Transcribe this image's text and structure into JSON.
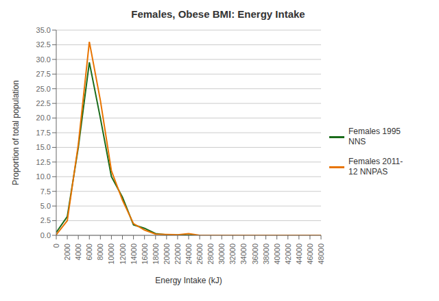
{
  "chart_data": {
    "type": "line",
    "title": "Females, Obese BMI: Energy Intake",
    "x_label": "Energy Intake (kJ)",
    "y_label": "Proportion of total population",
    "x": [
      0,
      2000,
      4000,
      6000,
      8000,
      10000,
      12000,
      14000,
      16000,
      18000,
      20000,
      22000,
      24000,
      26000,
      28000,
      30000,
      32000,
      34000,
      36000,
      38000,
      40000,
      42000,
      44000,
      46000,
      48000
    ],
    "series": [
      {
        "name": "Females 1995\nNNS",
        "color": "#1a6b1a",
        "values": [
          0.5,
          3.2,
          15.0,
          29.5,
          20.0,
          10.0,
          6.5,
          1.8,
          1.2,
          0.3,
          0.1,
          0.05,
          0.02,
          0.0,
          0.0,
          0.0,
          0.0,
          0.0,
          0.0,
          0.0,
          0.0,
          0.0,
          0.0,
          0.0,
          0.0
        ]
      },
      {
        "name": "Females 2011-\n12 NNPAS",
        "color": "#e87400",
        "values": [
          0.1,
          2.5,
          15.5,
          33.0,
          23.0,
          11.0,
          6.0,
          2.0,
          0.9,
          0.2,
          0.15,
          0.1,
          0.3,
          0.0,
          0.0,
          0.0,
          0.0,
          0.0,
          0.0,
          0.0,
          0.0,
          0.0,
          0.0,
          0.0,
          0.0
        ]
      }
    ],
    "xlim": [
      0,
      48000
    ],
    "xticks": [
      0,
      2000,
      4000,
      6000,
      8000,
      10000,
      12000,
      14000,
      16000,
      18000,
      20000,
      22000,
      24000,
      26000,
      28000,
      30000,
      32000,
      34000,
      36000,
      38000,
      40000,
      42000,
      44000,
      46000,
      48000
    ],
    "ylim": [
      0,
      35.0
    ],
    "yticks": [
      {
        "value": 0,
        "label": "0.0"
      },
      2.5,
      {
        "value": 5,
        "label": "5.0"
      },
      7.5,
      {
        "value": 10,
        "label": "10.0"
      },
      12.5,
      {
        "value": 15,
        "label": "15.0"
      },
      17.5,
      {
        "value": 20,
        "label": "20.0"
      },
      22.5,
      {
        "value": 25,
        "label": "25.0"
      },
      27.5,
      {
        "value": 30,
        "label": "30.0"
      },
      32.5,
      {
        "value": 35,
        "label": "35.0"
      }
    ],
    "grid": "y",
    "legend": "right"
  }
}
